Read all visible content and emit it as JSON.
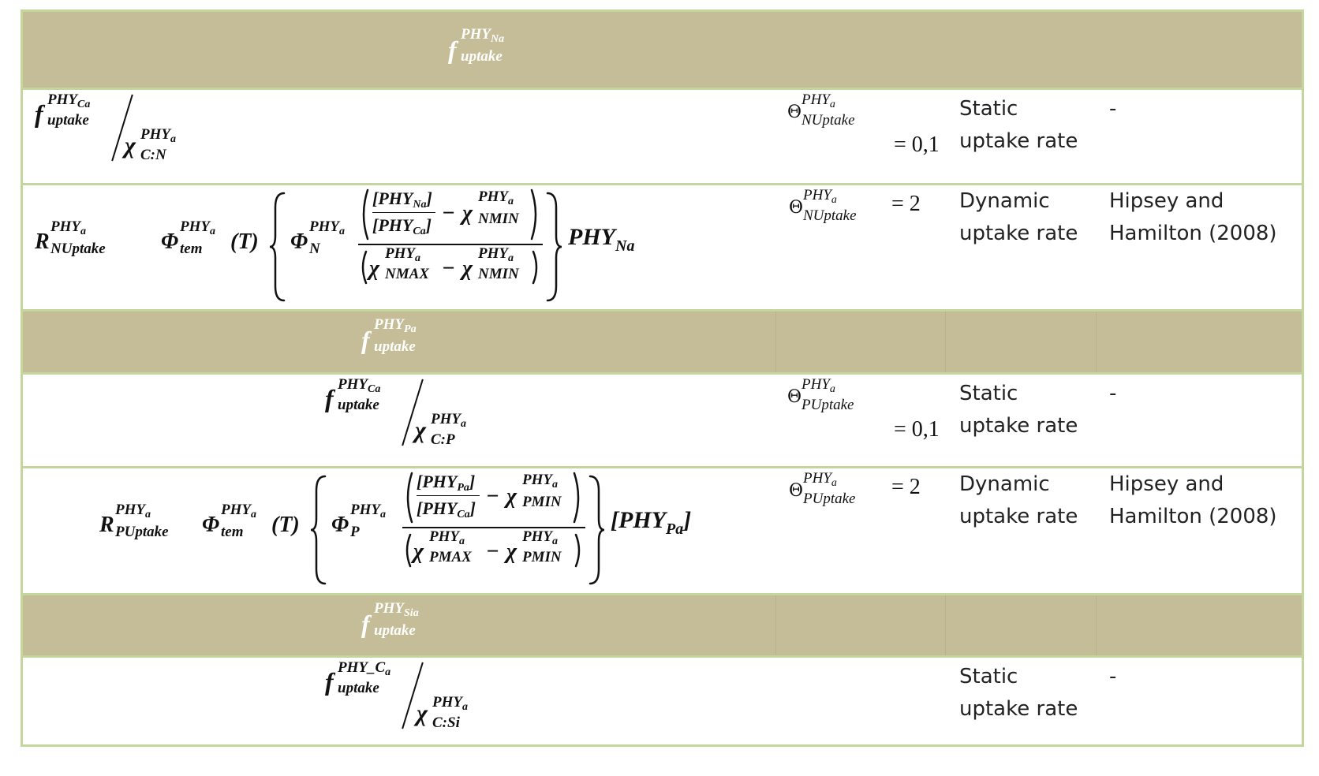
{
  "colors": {
    "header_bg": "#c4bd97",
    "border": "#c3d69b",
    "header_text": "#ffffff"
  },
  "sections": [
    {
      "header": {
        "base": "f",
        "sup": "PHY",
        "sup_sub": "N",
        "sup_sub2": "a",
        "sub": "uptake"
      }
    },
    {
      "header": {
        "base": "f",
        "sup": "PHY",
        "sup_sub": "P",
        "sup_sub2": "a",
        "sub": "uptake"
      }
    },
    {
      "header": {
        "base": "f",
        "sup": "PHY",
        "sup_sub": "Si",
        "sup_sub2": "a",
        "sub": "uptake"
      }
    }
  ],
  "rows": [
    {
      "num": {
        "base": "f",
        "sup": "PHY",
        "sup_sub": "C",
        "sup_sub2": "a",
        "sub": "uptake"
      },
      "den": {
        "base": "χ",
        "sup": "PHY",
        "sup_sub": "a",
        "sub": "C:N"
      },
      "theta": {
        "symbol": "Θ",
        "sup": "PHY",
        "sup_sub": "a",
        "sub": "NUptake",
        "value": "= 0,1"
      },
      "type": [
        "Static",
        "uptake rate"
      ],
      "reference": "-"
    },
    {
      "R": {
        "base": "R",
        "sup": "PHY",
        "sup_sub": "a",
        "sub": "NUptake"
      },
      "phi_tem": {
        "base": "Φ",
        "sup": "PHY",
        "sup_sub": "a",
        "sub": "tem",
        "arg": "(T)"
      },
      "phi_n": {
        "base": "Φ",
        "sup": "PHY",
        "sup_sub": "a",
        "sub": "N"
      },
      "frac": {
        "num1": "[PHY",
        "num1_sub": "N",
        "num1_sub2": "a",
        "num1_end": "]",
        "num2": "[PHY",
        "num2_sub": "C",
        "num2_sub2": "a",
        "num2_end": "]",
        "minus": "−",
        "chi": "χ",
        "chi_sup": "PHY",
        "chi_sup_sub": "a",
        "min_sub": "NMIN",
        "max_sub": "NMAX"
      },
      "tail": {
        "base": "PHY",
        "sub": "N",
        "sub2": "a"
      },
      "theta": {
        "symbol": "Θ",
        "sup": "PHY",
        "sup_sub": "a",
        "sub": "NUptake",
        "value": "= 2"
      },
      "type": [
        "Dynamic",
        "uptake rate"
      ],
      "reference": [
        "Hipsey and",
        "Hamilton (2008)"
      ]
    },
    {
      "num": {
        "base": "f",
        "sup": "PHY",
        "sup_sub": "C",
        "sup_sub2": "a",
        "sub": "uptake"
      },
      "den": {
        "base": "χ",
        "sup": "PHY",
        "sup_sub": "a",
        "sub": "C:P"
      },
      "theta": {
        "symbol": "Θ",
        "sup": "PHY",
        "sup_sub": "a",
        "sub": "PUptake",
        "value": "= 0,1"
      },
      "type": [
        "Static",
        "uptake rate"
      ],
      "reference": "-"
    },
    {
      "R": {
        "base": "R",
        "sup": "PHY",
        "sup_sub": "a",
        "sub": "PUptake"
      },
      "phi_tem": {
        "base": "Φ",
        "sup": "PHY",
        "sup_sub": "a",
        "sub": "tem",
        "arg": "(T)"
      },
      "phi_n": {
        "base": "Φ",
        "sup": "PHY",
        "sup_sub": "a",
        "sub": "P"
      },
      "frac": {
        "num1": "[PHY",
        "num1_sub": "P",
        "num1_sub2": "a",
        "num1_end": "]",
        "num2": "[PHY",
        "num2_sub": "C",
        "num2_sub2": "a",
        "num2_end": "]",
        "minus": "−",
        "chi": "χ",
        "chi_sup": "PHY",
        "chi_sup_sub": "a",
        "min_sub": "PMIN",
        "max_sub": "PMAX"
      },
      "tail": {
        "base": "[PHY",
        "sub": "P",
        "sub2": "a",
        "end": "]"
      },
      "theta": {
        "symbol": "Θ",
        "sup": "PHY",
        "sup_sub": "a",
        "sub": "PUptake",
        "value": "= 2"
      },
      "type": [
        "Dynamic",
        "uptake rate"
      ],
      "reference": [
        "Hipsey and",
        "Hamilton (2008)"
      ]
    },
    {
      "num": {
        "base": "f",
        "sup": "PHY_C",
        "sup_sub2": "a",
        "sub": "uptake"
      },
      "den": {
        "base": "χ",
        "sup": "PHY",
        "sup_sub": "a",
        "sub": "C:Si"
      },
      "type": [
        "Static",
        "uptake rate"
      ],
      "reference": "-"
    }
  ]
}
